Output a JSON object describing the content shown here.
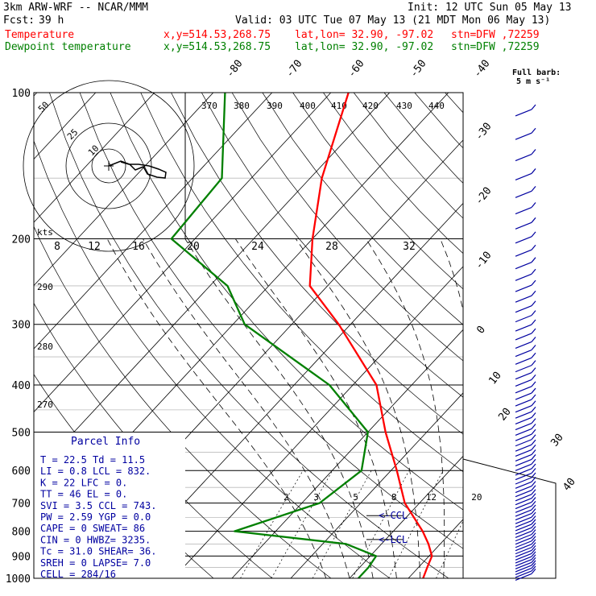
{
  "header": {
    "model": "3km ARW-WRF -- NCAR/MMM",
    "init": "Init: 12 UTC Sun 05 May 13",
    "fcst_label": "Fcst:",
    "fcst_value": "39 h",
    "valid": "Valid: 03 UTC Tue 07 May 13 (21 MDT Mon 06 May 13)",
    "temp_label": "Temperature",
    "dew_label": "Dewpoint temperature",
    "xy": "x,y=514.53,268.75",
    "latlon": "lat,lon= 32.90, -97.02",
    "stn": "stn=DFW ,72259",
    "colors": {
      "temperature": "#ff0000",
      "dewpoint": "#008000",
      "panel_text": "#0000a0"
    }
  },
  "barb_note": {
    "line1": "Full barb:",
    "line2": "5 m s⁻¹"
  },
  "chart_data": {
    "type": "line",
    "title": "",
    "xlabel": "",
    "ylabel": "",
    "y_axis": "pressure (hPa), log scale",
    "pressure_ticks": [
      "100",
      "200",
      "300",
      "400",
      "500",
      "600",
      "700",
      "800",
      "900",
      "1000"
    ],
    "temp_ticks": [
      "-80",
      "-70",
      "-60",
      "-50",
      "-40",
      "-30",
      "-20",
      "-10",
      "0",
      "10",
      "20",
      "30",
      "40"
    ],
    "theta_labels": [
      "370",
      "380",
      "390",
      "400",
      "410",
      "420",
      "430",
      "440",
      "290",
      "280",
      "270"
    ],
    "mixing_ratio_labels": [
      "2",
      "3",
      "5",
      "8",
      "12",
      "20"
    ],
    "series": [
      {
        "name": "Temperature",
        "points": [
          [
            100,
            -67
          ],
          [
            150,
            -58
          ],
          [
            200,
            -50
          ],
          [
            250,
            -43
          ],
          [
            300,
            -32
          ],
          [
            400,
            -16
          ],
          [
            500,
            -7
          ],
          [
            600,
            1
          ],
          [
            700,
            7.5
          ],
          [
            800,
            15
          ],
          [
            850,
            18
          ],
          [
            900,
            20.5
          ],
          [
            950,
            21.5
          ],
          [
            1000,
            22.5
          ]
        ]
      },
      {
        "name": "Dewpoint temperature",
        "points": [
          [
            100,
            -88
          ],
          [
            150,
            -75
          ],
          [
            200,
            -74
          ],
          [
            250,
            -57
          ],
          [
            300,
            -48
          ],
          [
            400,
            -24
          ],
          [
            500,
            -10
          ],
          [
            600,
            -5
          ],
          [
            700,
            -7
          ],
          [
            800,
            -17
          ],
          [
            850,
            4
          ],
          [
            900,
            11
          ],
          [
            950,
            11.5
          ],
          [
            1000,
            11.5
          ]
        ]
      }
    ],
    "lcl_pressure": 832,
    "ccl_pressure": 743,
    "wind_profile": "barbs along right edge",
    "hodograph": {
      "ring_labels": [
        "50",
        "25",
        "10"
      ],
      "axis_unit": "kts",
      "speed_ticks": [
        "8",
        "12",
        "16",
        "20",
        "24",
        "28",
        "32"
      ]
    },
    "annotations": [
      "<-CCL",
      "<-LCL"
    ]
  },
  "parcel_info": {
    "title": "Parcel Info",
    "rows": [
      "T  =   22.5 Td =  11.5",
      "LI =    0.8 LCL =  832.",
      "K  =     22 LFC =    0.",
      "TT =     46 EL  =    0.",
      "SVI =   3.5 CCL =  743.",
      "PW =   2.59 YGP =  0.0",
      "CAPE =    0 SWEAT=   86",
      "CIN =     0 HWBZ= 3235.",
      "Tc =   31.0 SHEAR=  36.",
      "SREH =    0 LAPSE=  7.0",
      "CELL = 284/16"
    ]
  }
}
